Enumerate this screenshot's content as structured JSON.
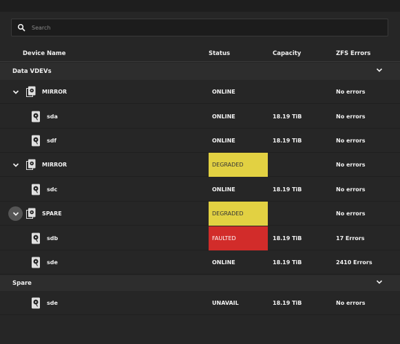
{
  "search": {
    "placeholder": "Search"
  },
  "columns": {
    "device_name": "Device Name",
    "status": "Status",
    "capacity": "Capacity",
    "zfs_errors": "ZFS Errors"
  },
  "colors": {
    "degraded": "#e2d142",
    "faulted": "#d22c2a"
  },
  "sections": [
    {
      "label": "Data VDEVs",
      "expanded": true
    },
    {
      "label": "Spare",
      "expanded": true
    }
  ],
  "rows": [
    {
      "name": "MIRROR",
      "status": "ONLINE",
      "capacity": "",
      "errors": "No errors"
    },
    {
      "name": "sda",
      "status": "ONLINE",
      "capacity": "18.19 TiB",
      "errors": "No errors"
    },
    {
      "name": "sdf",
      "status": "ONLINE",
      "capacity": "18.19 TiB",
      "errors": "No errors"
    },
    {
      "name": "MIRROR",
      "status": "DEGRADED",
      "capacity": "",
      "errors": "No errors"
    },
    {
      "name": "sdc",
      "status": "ONLINE",
      "capacity": "18.19 TiB",
      "errors": "No errors"
    },
    {
      "name": "SPARE",
      "status": "DEGRADED",
      "capacity": "",
      "errors": "No errors"
    },
    {
      "name": "sdb",
      "status": "FAULTED",
      "capacity": "18.19 TiB",
      "errors": "17 Errors"
    },
    {
      "name": "sde",
      "status": "ONLINE",
      "capacity": "18.19 TiB",
      "errors": "2410 Errors"
    },
    {
      "name": "sde",
      "status": "UNAVAIL",
      "capacity": "18.19 TiB",
      "errors": "No errors"
    }
  ]
}
